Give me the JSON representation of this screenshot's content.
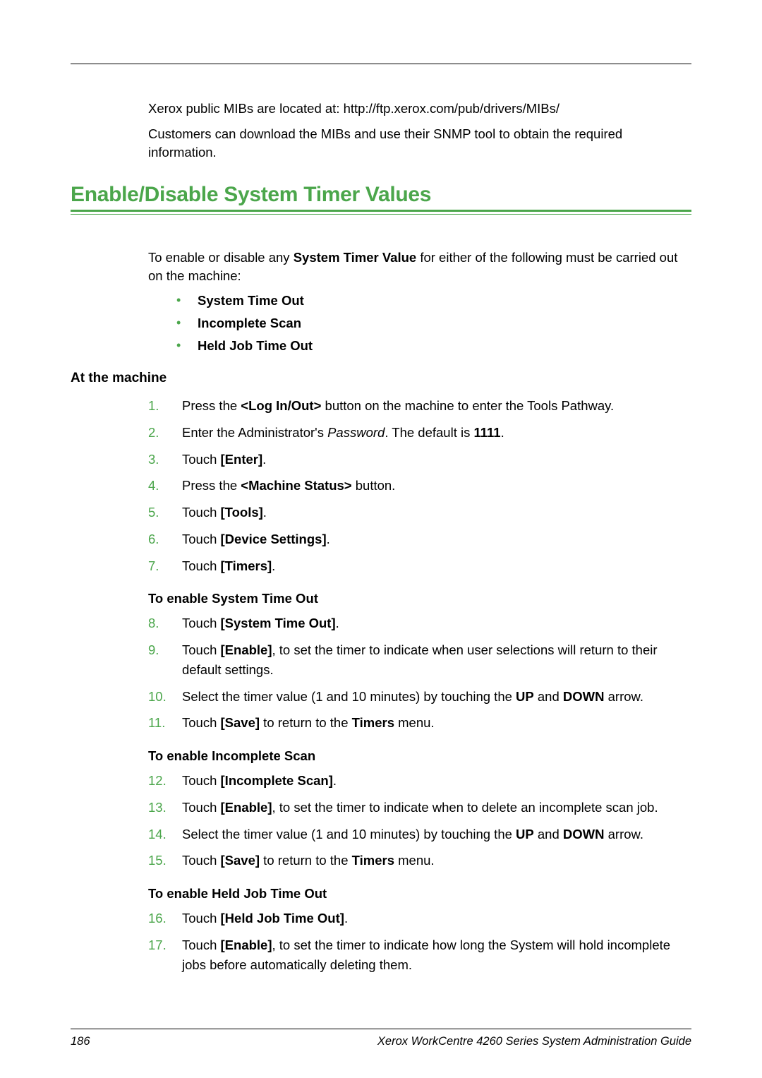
{
  "intro": {
    "line1_a": "Xerox public MIBs are located at: http://ftp.xerox.com/pub/drivers/MIBs/",
    "line2_a": "Customers can download the MIBs and use their SNMP tool to obtain the required information."
  },
  "heading": "Enable/Disable System Timer Values",
  "enable_intro_a": "To enable or disable any ",
  "enable_intro_b": "System Timer Value",
  "enable_intro_c": " for either of the following must be carried out on the machine:",
  "bullets": [
    "System Time Out",
    "Incomplete Scan",
    "Held Job Time Out"
  ],
  "at_machine": "At the machine",
  "steps": [
    {
      "n": "1.",
      "parts": [
        {
          "t": "Press the "
        },
        {
          "t": "<Log In/Out>",
          "b": true
        },
        {
          "t": " button on the machine to enter the Tools Pathway."
        }
      ]
    },
    {
      "n": "2.",
      "parts": [
        {
          "t": "Enter the Administrator's "
        },
        {
          "t": "Password",
          "i": true
        },
        {
          "t": ". The default is "
        },
        {
          "t": "1111",
          "b": true
        },
        {
          "t": "."
        }
      ]
    },
    {
      "n": "3.",
      "parts": [
        {
          "t": "Touch "
        },
        {
          "t": "[Enter]",
          "b": true
        },
        {
          "t": "."
        }
      ]
    },
    {
      "n": "4.",
      "parts": [
        {
          "t": "Press the "
        },
        {
          "t": "<Machine Status>",
          "b": true
        },
        {
          "t": " button."
        }
      ]
    },
    {
      "n": "5.",
      "parts": [
        {
          "t": "Touch "
        },
        {
          "t": "[Tools]",
          "b": true
        },
        {
          "t": "."
        }
      ]
    },
    {
      "n": "6.",
      "parts": [
        {
          "t": "Touch "
        },
        {
          "t": "[Device Settings]",
          "b": true
        },
        {
          "t": "."
        }
      ]
    },
    {
      "n": "7.",
      "parts": [
        {
          "t": "Touch "
        },
        {
          "t": "[Timers]",
          "b": true
        },
        {
          "t": "."
        }
      ]
    }
  ],
  "sub1": "To enable System Time Out",
  "steps1": [
    {
      "n": "8.",
      "parts": [
        {
          "t": "Touch "
        },
        {
          "t": "[System Time Out]",
          "b": true
        },
        {
          "t": "."
        }
      ]
    },
    {
      "n": "9.",
      "parts": [
        {
          "t": "Touch "
        },
        {
          "t": "[Enable]",
          "b": true
        },
        {
          "t": ", to set the timer to indicate when user selections will return to their default settings."
        }
      ]
    },
    {
      "n": "10.",
      "parts": [
        {
          "t": "Select the timer value (1 and 10 minutes) by touching the "
        },
        {
          "t": "UP",
          "b": true
        },
        {
          "t": " and "
        },
        {
          "t": "DOWN",
          "b": true
        },
        {
          "t": " arrow."
        }
      ]
    },
    {
      "n": "11.",
      "parts": [
        {
          "t": "Touch "
        },
        {
          "t": "[Save]",
          "b": true
        },
        {
          "t": " to return to the "
        },
        {
          "t": "Timers",
          "b": true
        },
        {
          "t": " menu."
        }
      ]
    }
  ],
  "sub2": "To enable Incomplete Scan",
  "steps2": [
    {
      "n": "12.",
      "parts": [
        {
          "t": "Touch "
        },
        {
          "t": "[Incomplete Scan]",
          "b": true
        },
        {
          "t": "."
        }
      ]
    },
    {
      "n": "13.",
      "parts": [
        {
          "t": "Touch "
        },
        {
          "t": "[Enable]",
          "b": true
        },
        {
          "t": ", to set the timer to indicate when to delete an incomplete scan job."
        }
      ]
    },
    {
      "n": "14.",
      "parts": [
        {
          "t": "Select the timer value (1 and 10 minutes) by touching the "
        },
        {
          "t": "UP",
          "b": true
        },
        {
          "t": " and "
        },
        {
          "t": "DOWN",
          "b": true
        },
        {
          "t": " arrow."
        }
      ]
    },
    {
      "n": "15.",
      "parts": [
        {
          "t": "Touch "
        },
        {
          "t": "[Save]",
          "b": true
        },
        {
          "t": " to return to the "
        },
        {
          "t": "Timers",
          "b": true
        },
        {
          "t": " menu."
        }
      ]
    }
  ],
  "sub3": "To enable Held Job Time Out",
  "steps3": [
    {
      "n": "16.",
      "parts": [
        {
          "t": "Touch "
        },
        {
          "t": "[Held Job Time Out]",
          "b": true
        },
        {
          "t": "."
        }
      ]
    },
    {
      "n": "17.",
      "parts": [
        {
          "t": "Touch "
        },
        {
          "t": "[Enable]",
          "b": true
        },
        {
          "t": ", to set the timer to indicate how long the System will hold incomplete jobs before automatically deleting them."
        }
      ]
    }
  ],
  "footer": {
    "page": "186",
    "title": "Xerox WorkCentre 4260 Series System Administration Guide"
  }
}
